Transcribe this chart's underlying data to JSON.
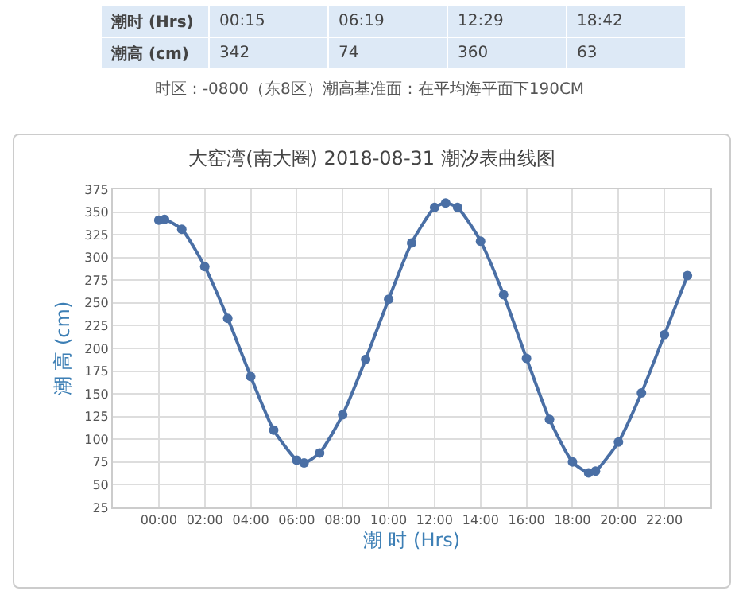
{
  "chart_data": {
    "type": "line",
    "title": "大窑湾(南大圈) 2018-08-31 潮汐表曲线图",
    "xlabel": "潮 时 (Hrs)",
    "ylabel": "潮 高 (cm)",
    "annotations": [
      "潮时 (Hrs)",
      "00:15",
      "06:19",
      "12:29",
      "18:42",
      "潮高 (cm)",
      "342",
      "74",
      "360",
      "63",
      "时区：-0800（东8区）潮高基准面：在平均海平面下190CM"
    ],
    "x": [
      0,
      0.25,
      1,
      2,
      3,
      4,
      5,
      6,
      6.32,
      7,
      8,
      9,
      10,
      11,
      12,
      12.48,
      13,
      14,
      15,
      16,
      17,
      18,
      18.7,
      19,
      20,
      21,
      22,
      23
    ],
    "series": [
      {
        "color": "#4a6fa5",
        "values": [
          341,
          342,
          331,
          290,
          233,
          169,
          110,
          77,
          74,
          85,
          127,
          188,
          254,
          316,
          355,
          360,
          355,
          318,
          259,
          189,
          122,
          75,
          63,
          65,
          97,
          151,
          215,
          280
        ]
      }
    ],
    "xlim": [
      -2,
      24
    ],
    "xticks": [
      {
        "value": 0,
        "label": "00:00"
      },
      {
        "value": 2,
        "label": "02:00"
      },
      {
        "value": 4,
        "label": "04:00"
      },
      {
        "value": 6,
        "label": "06:00"
      },
      {
        "value": 8,
        "label": "08:00"
      },
      {
        "value": 10,
        "label": "10:00"
      },
      {
        "value": 12,
        "label": "12:00"
      },
      {
        "value": 14,
        "label": "14:00"
      },
      {
        "value": 16,
        "label": "16:00"
      },
      {
        "value": 18,
        "label": "18:00"
      },
      {
        "value": 20,
        "label": "20:00"
      },
      {
        "value": 22,
        "label": "22:00"
      }
    ],
    "ylim": [
      25,
      375
    ],
    "yticks": [
      25,
      50,
      75,
      100,
      125,
      150,
      175,
      200,
      225,
      250,
      275,
      300,
      325,
      350,
      375
    ],
    "grid": true,
    "marker": "circle",
    "line_style": "solid"
  }
}
